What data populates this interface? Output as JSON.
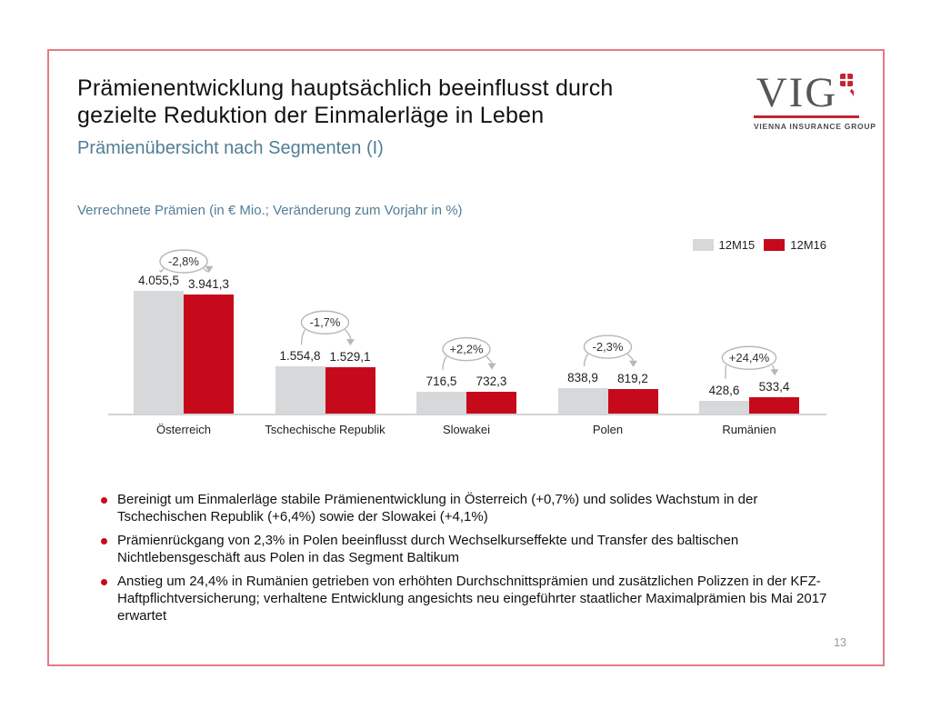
{
  "slide": {
    "title_line1": "Prämienentwicklung hauptsächlich beeinflusst durch",
    "title_line2": "gezielte Reduktion der Einmalerläge in Leben",
    "subtitle": "Prämienübersicht nach Segmenten (I)",
    "page_number": "13"
  },
  "logo": {
    "wordmark": "VIG",
    "tagline": "VIENNA INSURANCE GROUP"
  },
  "chart_data": {
    "type": "bar",
    "title": "Verrechnete Prämien (in € Mio.; Veränderung zum Vorjahr in %)",
    "categories": [
      "Österreich",
      "Tschechische Republik",
      "Slowakei",
      "Polen",
      "Rumänien"
    ],
    "series": [
      {
        "name": "12M15",
        "color": "#d6d8d9",
        "values": [
          4055.5,
          1554.8,
          716.5,
          838.9,
          428.6
        ]
      },
      {
        "name": "12M16",
        "color": "#c60a1c",
        "values": [
          3941.3,
          1529.1,
          732.3,
          819.2,
          533.4
        ]
      }
    ],
    "value_labels": [
      [
        "4.055,5",
        "3.941,3"
      ],
      [
        "1.554,8",
        "1.529,1"
      ],
      [
        "716,5",
        "732,3"
      ],
      [
        "838,9",
        "819,2"
      ],
      [
        "428,6",
        "533,4"
      ]
    ],
    "change_labels": [
      "-2,8%",
      "-1,7%",
      "+2,2%",
      "-2,3%",
      "+24,4%"
    ],
    "ylim": [
      0,
      4100
    ],
    "grid": false,
    "legend_position": "top-right"
  },
  "bullets": [
    "Bereinigt um Einmalerläge stabile Prämienentwicklung in Österreich (+0,7%) und solides Wachstum in der Tschechischen Republik (+6,4%) sowie der Slowakei (+4,1%)",
    "Prämienrückgang von 2,3% in Polen beeinflusst durch Wechselkurseffekte und Transfer des baltischen Nichtlebensgeschäft aus Polen in das Segment Baltikum",
    "Anstieg um 24,4% in Rumänien getrieben von erhöhten Durchschnittsprämien und zusätzlichen Polizzen in der KFZ-Haftpflichtversicherung; verhaltene Entwicklung angesichts neu eingeführter staatlicher Maximalprämien bis Mai 2017 erwartet"
  ],
  "colors": {
    "accent_red": "#c60a1c",
    "bar_gray": "#d6d8d9",
    "slide_border": "#e47b82",
    "subtitle_blue": "#527d96",
    "annotation_gray": "#b5b8ba"
  }
}
